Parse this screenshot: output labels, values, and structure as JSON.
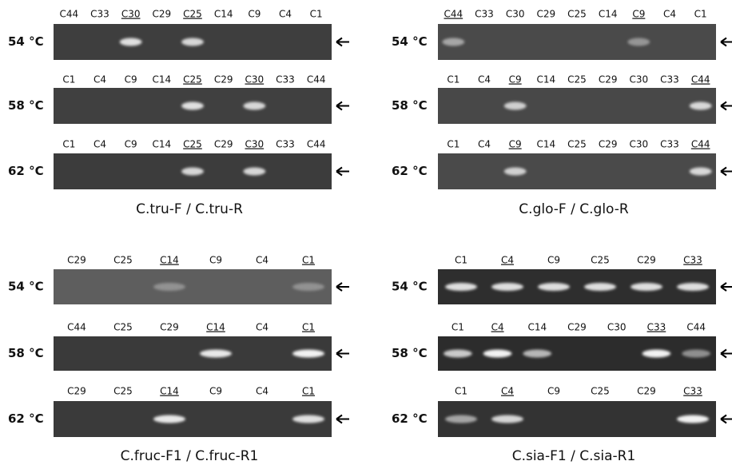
{
  "panels": [
    {
      "title": "C.tru-F / C.tru-R",
      "rows": [
        {
          "temperature": "54 °C",
          "lanes": [
            {
              "label": "C44"
            },
            {
              "label": "C33"
            },
            {
              "label": "C30",
              "underline": true
            },
            {
              "label": "C29"
            },
            {
              "label": "C25",
              "underline": true
            },
            {
              "label": "C14"
            },
            {
              "label": "C9"
            },
            {
              "label": "C4"
            },
            {
              "label": "C1"
            }
          ]
        },
        {
          "temperature": "58 °C",
          "lanes": [
            {
              "label": "C1"
            },
            {
              "label": "C4"
            },
            {
              "label": "C9"
            },
            {
              "label": "C14"
            },
            {
              "label": "C25",
              "underline": true
            },
            {
              "label": "C29"
            },
            {
              "label": "C30",
              "underline": true
            },
            {
              "label": "C33"
            },
            {
              "label": "C44"
            }
          ]
        },
        {
          "temperature": "62 °C",
          "lanes": [
            {
              "label": "C1"
            },
            {
              "label": "C4"
            },
            {
              "label": "C9"
            },
            {
              "label": "C14"
            },
            {
              "label": "C25",
              "underline": true
            },
            {
              "label": "C29"
            },
            {
              "label": "C30",
              "underline": true
            },
            {
              "label": "C33"
            },
            {
              "label": "C44"
            }
          ]
        }
      ]
    },
    {
      "title": "C.glo-F / C.glo-R",
      "rows": [
        {
          "temperature": "54 °C",
          "lanes": [
            {
              "label": "C44",
              "underline": true
            },
            {
              "label": "C33"
            },
            {
              "label": "C30"
            },
            {
              "label": "C29"
            },
            {
              "label": "C25"
            },
            {
              "label": "C14"
            },
            {
              "label": "C9",
              "underline": true
            },
            {
              "label": "C4"
            },
            {
              "label": "C1"
            }
          ]
        },
        {
          "temperature": "58 °C",
          "lanes": [
            {
              "label": "C1"
            },
            {
              "label": "C4"
            },
            {
              "label": "C9",
              "underline": true
            },
            {
              "label": "C14"
            },
            {
              "label": "C25"
            },
            {
              "label": "C29"
            },
            {
              "label": "C30"
            },
            {
              "label": "C33"
            },
            {
              "label": "C44",
              "underline": true
            }
          ]
        },
        {
          "temperature": "62 °C",
          "lanes": [
            {
              "label": "C1"
            },
            {
              "label": "C4"
            },
            {
              "label": "C9",
              "underline": true
            },
            {
              "label": "C14"
            },
            {
              "label": "C25"
            },
            {
              "label": "C29"
            },
            {
              "label": "C30"
            },
            {
              "label": "C33"
            },
            {
              "label": "C44",
              "underline": true
            }
          ]
        }
      ]
    },
    {
      "title": "C.fruc-F1 / C.fruc-R1",
      "rows": [
        {
          "temperature": "54 °C",
          "lanes": [
            {
              "label": "C29"
            },
            {
              "label": "C25"
            },
            {
              "label": "C14",
              "underline": true
            },
            {
              "label": "C9"
            },
            {
              "label": "C4"
            },
            {
              "label": "C1",
              "underline": true
            }
          ]
        },
        {
          "temperature": "58 °C",
          "lanes": [
            {
              "label": "C44"
            },
            {
              "label": "C25"
            },
            {
              "label": "C29"
            },
            {
              "label": "C14",
              "underline": true
            },
            {
              "label": "C4"
            },
            {
              "label": "C1",
              "underline": true
            }
          ]
        },
        {
          "temperature": "62 °C",
          "lanes": [
            {
              "label": "C29"
            },
            {
              "label": "C25"
            },
            {
              "label": "C14",
              "underline": true
            },
            {
              "label": "C9"
            },
            {
              "label": "C4"
            },
            {
              "label": "C1",
              "underline": true
            }
          ]
        }
      ]
    },
    {
      "title": "C.sia-F1 / C.sia-R1",
      "rows": [
        {
          "temperature": "54 °C",
          "lanes": [
            {
              "label": "C1"
            },
            {
              "label": "C4",
              "underline": true
            },
            {
              "label": "C9"
            },
            {
              "label": "C25"
            },
            {
              "label": "C29"
            },
            {
              "label": "C33",
              "underline": true
            }
          ]
        },
        {
          "temperature": "58 °C",
          "lanes": [
            {
              "label": "C1"
            },
            {
              "label": "C4",
              "underline": true
            },
            {
              "label": "C14"
            },
            {
              "label": "C29"
            },
            {
              "label": "C30"
            },
            {
              "label": "C33",
              "underline": true
            },
            {
              "label": "C44"
            }
          ]
        },
        {
          "temperature": "62 °C",
          "lanes": [
            {
              "label": "C1"
            },
            {
              "label": "C4",
              "underline": true
            },
            {
              "label": "C9"
            },
            {
              "label": "C25"
            },
            {
              "label": "C29"
            },
            {
              "label": "C33",
              "underline": true
            }
          ]
        }
      ]
    }
  ]
}
